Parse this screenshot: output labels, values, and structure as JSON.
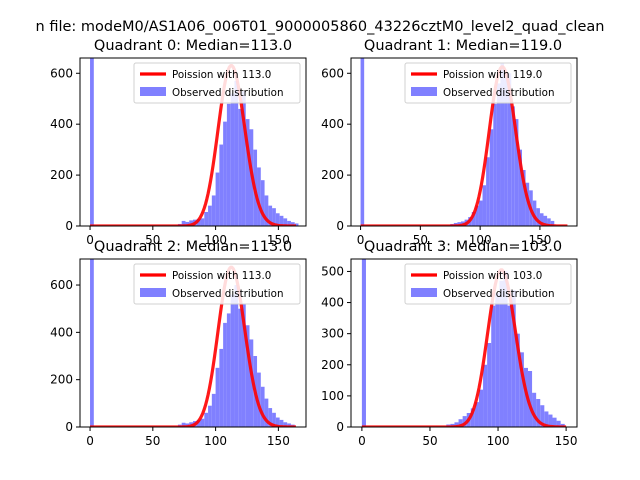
{
  "figure": {
    "suptitle": "n file: modeM0/AS1A06_006T01_9000005860_43226cztM0_level2_quad_clean"
  },
  "colors": {
    "poisson_line": "#ff0000",
    "observed_bar": "#8080ff",
    "axes": "#000000",
    "background": "#ffffff"
  },
  "chart_data": [
    {
      "type": "bar",
      "title": "Quadrant 0: Median=113.0",
      "median": 113.0,
      "xlim": [
        -8,
        172
      ],
      "ylim": [
        0,
        660
      ],
      "xticks": [
        0,
        50,
        100,
        150
      ],
      "yticks": [
        0,
        200,
        400,
        600
      ],
      "legend_position": "upper-right",
      "series": [
        {
          "name": "Poission with 113.0",
          "kind": "line",
          "lambda": 113.0,
          "peak": 630
        },
        {
          "name": "Observed distribution",
          "kind": "histogram",
          "bins": [
            0,
            70,
            73,
            76,
            79,
            82,
            85,
            88,
            91,
            94,
            97,
            100,
            103,
            106,
            109,
            112,
            115,
            118,
            121,
            124,
            127,
            130,
            133,
            136,
            139,
            142,
            145,
            148,
            151,
            154,
            157,
            160,
            163
          ],
          "values": [
            660,
            8,
            20,
            16,
            22,
            25,
            28,
            30,
            55,
            80,
            120,
            210,
            320,
            410,
            480,
            520,
            570,
            460,
            530,
            420,
            380,
            300,
            230,
            180,
            120,
            80,
            70,
            50,
            40,
            30,
            20,
            15,
            10
          ]
        }
      ]
    },
    {
      "type": "bar",
      "title": "Quadrant 1: Median=119.0",
      "median": 119.0,
      "xlim": [
        -8,
        181
      ],
      "ylim": [
        0,
        660
      ],
      "xticks": [
        0,
        50,
        100,
        150
      ],
      "yticks": [
        0,
        200,
        400,
        600
      ],
      "legend_position": "upper-right",
      "series": [
        {
          "name": "Poission with 119.0",
          "kind": "line",
          "lambda": 119.0,
          "peak": 625
        },
        {
          "name": "Observed distribution",
          "kind": "histogram",
          "bins": [
            0,
            75,
            78,
            81,
            84,
            87,
            90,
            93,
            96,
            99,
            102,
            105,
            108,
            111,
            114,
            117,
            120,
            123,
            126,
            129,
            132,
            135,
            138,
            141,
            144,
            147,
            150,
            153,
            156,
            159
          ],
          "values": [
            660,
            8,
            12,
            15,
            18,
            25,
            35,
            55,
            80,
            100,
            160,
            270,
            380,
            480,
            560,
            640,
            590,
            600,
            470,
            420,
            300,
            220,
            170,
            140,
            100,
            70,
            50,
            40,
            30,
            20
          ]
        }
      ]
    },
    {
      "type": "bar",
      "title": "Quadrant 2: Median=113.0",
      "median": 113.0,
      "xlim": [
        -8,
        172
      ],
      "ylim": [
        0,
        710
      ],
      "xticks": [
        0,
        50,
        100,
        150
      ],
      "yticks": [
        0,
        200,
        400,
        600
      ],
      "legend_position": "upper-right",
      "series": [
        {
          "name": "Poission with 113.0",
          "kind": "line",
          "lambda": 113.0,
          "peak": 675
        },
        {
          "name": "Observed distribution",
          "kind": "histogram",
          "bins": [
            0,
            70,
            73,
            76,
            79,
            82,
            85,
            88,
            91,
            94,
            97,
            100,
            103,
            106,
            109,
            112,
            115,
            118,
            121,
            124,
            127,
            130,
            133,
            136,
            139,
            142,
            145,
            148,
            151,
            154,
            157,
            160
          ],
          "values": [
            710,
            10,
            18,
            15,
            20,
            25,
            30,
            35,
            60,
            90,
            140,
            250,
            330,
            440,
            480,
            560,
            600,
            500,
            520,
            430,
            370,
            300,
            230,
            170,
            120,
            80,
            60,
            40,
            30,
            20,
            15,
            10
          ]
        }
      ]
    },
    {
      "type": "bar",
      "title": "Quadrant 3: Median=103.0",
      "median": 103.0,
      "xlim": [
        -8,
        158
      ],
      "ylim": [
        0,
        540
      ],
      "xticks": [
        0,
        50,
        100,
        150
      ],
      "yticks": [
        0,
        100,
        200,
        300,
        400,
        500
      ],
      "legend_position": "upper-right",
      "series": [
        {
          "name": "Poission with 103.0",
          "kind": "line",
          "lambda": 103.0,
          "peak": 505
        },
        {
          "name": "Observed distribution",
          "kind": "histogram",
          "bins": [
            0,
            62,
            65,
            68,
            71,
            74,
            77,
            80,
            83,
            86,
            89,
            92,
            95,
            98,
            101,
            104,
            107,
            110,
            113,
            116,
            119,
            122,
            125,
            128,
            131,
            134,
            137,
            140,
            143,
            146
          ],
          "values": [
            540,
            8,
            10,
            15,
            25,
            35,
            45,
            60,
            80,
            120,
            200,
            270,
            390,
            430,
            470,
            500,
            390,
            440,
            300,
            240,
            190,
            180,
            110,
            90,
            70,
            50,
            40,
            30,
            20,
            10
          ]
        }
      ]
    }
  ]
}
